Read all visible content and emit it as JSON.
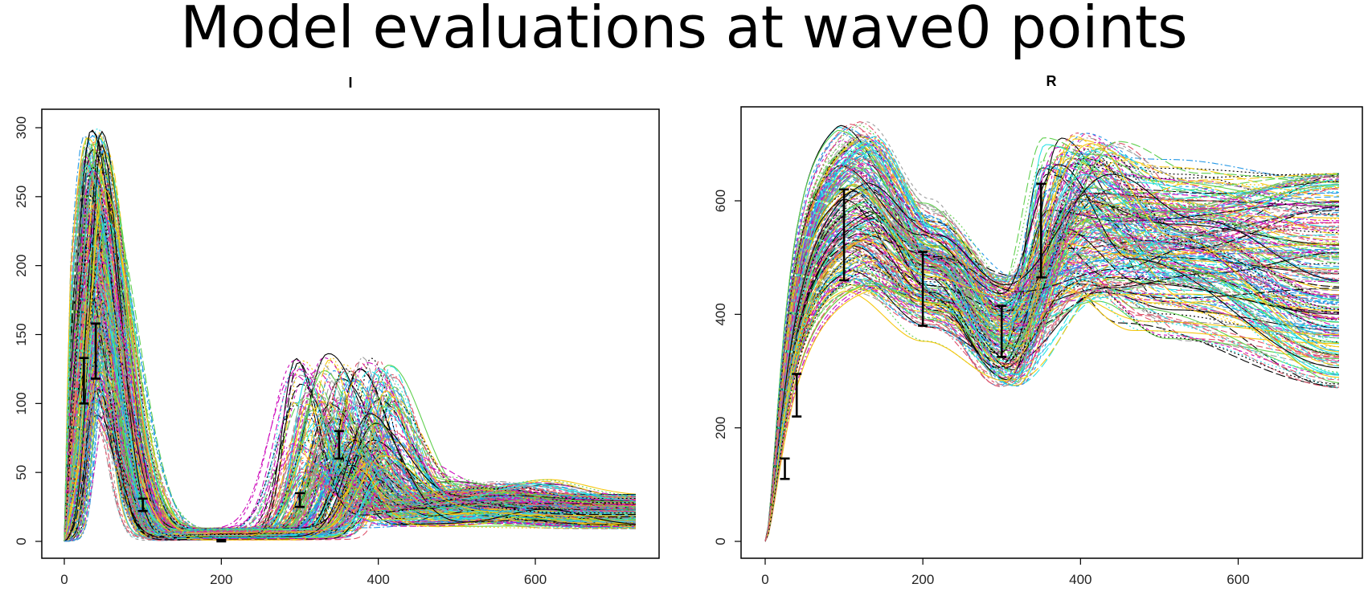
{
  "title": "Model evaluations at wave0 points",
  "palette": [
    "#000000",
    "#df536b",
    "#61d04f",
    "#2297e6",
    "#28e2e5",
    "#cd0bbc",
    "#f5c710",
    "#9e9e9e"
  ],
  "chart_data": [
    {
      "type": "line",
      "title": "I",
      "xlabel": "",
      "ylabel": "",
      "xlim": [
        0,
        730
      ],
      "ylim": [
        0,
        310
      ],
      "xticks": [
        0,
        200,
        400,
        600
      ],
      "yticks": [
        0,
        50,
        100,
        150,
        200,
        250,
        300
      ],
      "grid": false,
      "ensemble": {
        "n_runs": 300,
        "t_range": [
          0,
          730
        ],
        "peak1": {
          "time_range": [
            25,
            55
          ],
          "height_range": [
            85,
            300
          ]
        },
        "trough": {
          "value_range": [
            1,
            10
          ]
        },
        "peak2": {
          "time_range": [
            290,
            420
          ],
          "height_range": [
            40,
            125
          ]
        },
        "late_level_range": [
          8,
          30
        ]
      },
      "targets": [
        {
          "x": 25,
          "y": 117,
          "lo": 100,
          "hi": 133
        },
        {
          "x": 40,
          "y": 140,
          "lo": 118,
          "hi": 158
        },
        {
          "x": 100,
          "y": 26,
          "lo": 22,
          "hi": 31
        },
        {
          "x": 200,
          "y": 0.5,
          "lo": 0,
          "hi": 1
        },
        {
          "x": 300,
          "y": 30,
          "lo": 25,
          "hi": 35
        },
        {
          "x": 350,
          "y": 70,
          "lo": 60,
          "hi": 80
        }
      ]
    },
    {
      "type": "line",
      "title": "R",
      "xlabel": "",
      "ylabel": "",
      "xlim": [
        0,
        730
      ],
      "ylim": [
        0,
        760
      ],
      "xticks": [
        0,
        200,
        400,
        600
      ],
      "yticks": [
        0,
        200,
        400,
        600
      ],
      "grid": false,
      "ensemble": {
        "n_runs": 250,
        "t_range": [
          0,
          730
        ],
        "peak1": {
          "time_range": [
            90,
            140
          ],
          "height_range": [
            440,
            740
          ]
        },
        "trough": {
          "time_range": [
            290,
            330
          ],
          "value_range": [
            270,
            470
          ]
        },
        "peak2": {
          "time_range": [
            350,
            450
          ],
          "height_range": [
            420,
            720
          ]
        },
        "late_level_range": [
          270,
          650
        ]
      },
      "targets": [
        {
          "x": 25,
          "y": 128,
          "lo": 110,
          "hi": 146
        },
        {
          "x": 40,
          "y": 258,
          "lo": 220,
          "hi": 295
        },
        {
          "x": 100,
          "y": 540,
          "lo": 460,
          "hi": 620
        },
        {
          "x": 200,
          "y": 445,
          "lo": 380,
          "hi": 510
        },
        {
          "x": 300,
          "y": 370,
          "lo": 325,
          "hi": 415
        },
        {
          "x": 350,
          "y": 548,
          "lo": 465,
          "hi": 630
        }
      ]
    }
  ]
}
